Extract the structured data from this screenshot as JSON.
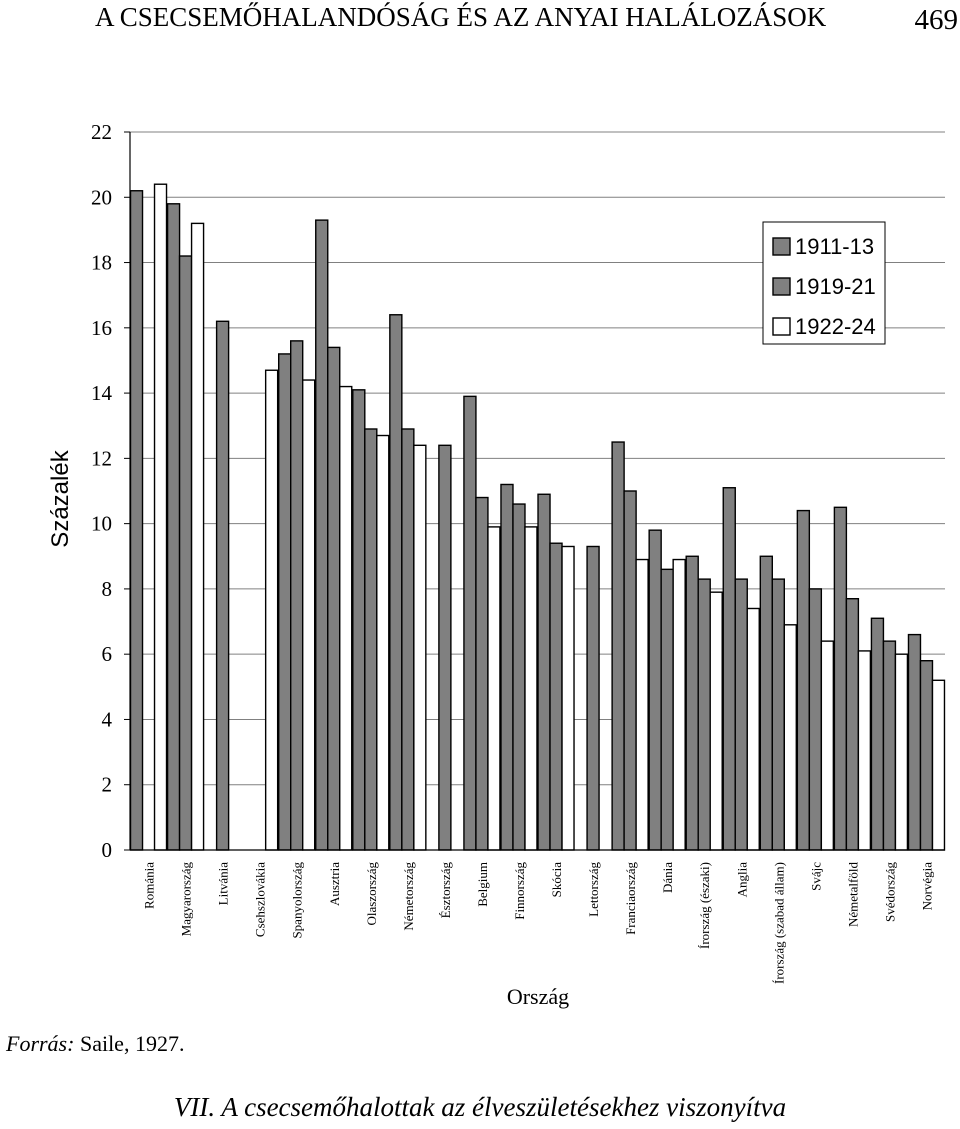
{
  "header": {
    "running_title": "A CSECSEMŐHALANDÓSÁG ÉS AZ ANYAI HALÁLOZÁSOK",
    "page_number": "469"
  },
  "source": {
    "label": "Forrás:",
    "text": "Saile, 1927."
  },
  "caption": "VII. A csecsemőhalottak az élveszületésekhez viszonyítva",
  "colors": {
    "bar_1911_13": "#808080",
    "bar_1919_21": "#808080",
    "bar_1922_24": "#ffffff",
    "outline": "#000000",
    "grid": "#808080"
  },
  "chart_data": {
    "type": "bar",
    "xlabel": "Ország",
    "ylabel": "Százalék",
    "ylim": [
      0,
      22
    ],
    "yticks": [
      "0",
      "2",
      "4",
      "6",
      "8",
      "10",
      "12",
      "14",
      "16",
      "18",
      "20",
      "22"
    ],
    "grid": true,
    "legend_position": "top-right",
    "categories": [
      "Románia",
      "Magyarország",
      "Litvánia",
      "Csehszlovákia",
      "Spanyolország",
      "Ausztria",
      "Olaszország",
      "Németország",
      "Észtország",
      "Belgium",
      "Finnország",
      "Skócia",
      "Lettország",
      "Franciaország",
      "Dánia",
      "Írország (északi)",
      "Anglia",
      "Írország (szabad állam)",
      "Svájc",
      "Németalföld",
      "Svédország",
      "Norvégia"
    ],
    "series": [
      {
        "name": "1911-13",
        "values": [
          20.2,
          19.8,
          null,
          null,
          15.2,
          19.3,
          14.1,
          16.4,
          null,
          13.9,
          11.2,
          10.9,
          null,
          12.5,
          9.8,
          9.0,
          11.1,
          9.0,
          10.4,
          10.5,
          7.1,
          6.6
        ]
      },
      {
        "name": "1919-21",
        "values": [
          null,
          18.2,
          16.2,
          null,
          15.6,
          15.4,
          12.9,
          12.9,
          12.4,
          10.8,
          10.6,
          9.4,
          9.3,
          11.0,
          8.6,
          8.3,
          8.3,
          8.3,
          8.0,
          7.7,
          6.4,
          5.8
        ]
      },
      {
        "name": "1922-24",
        "values": [
          20.4,
          19.2,
          null,
          14.7,
          14.4,
          14.2,
          12.7,
          12.4,
          null,
          9.9,
          9.9,
          9.3,
          null,
          8.9,
          8.9,
          7.9,
          7.4,
          6.9,
          6.4,
          6.1,
          6.0,
          5.2
        ]
      }
    ]
  }
}
